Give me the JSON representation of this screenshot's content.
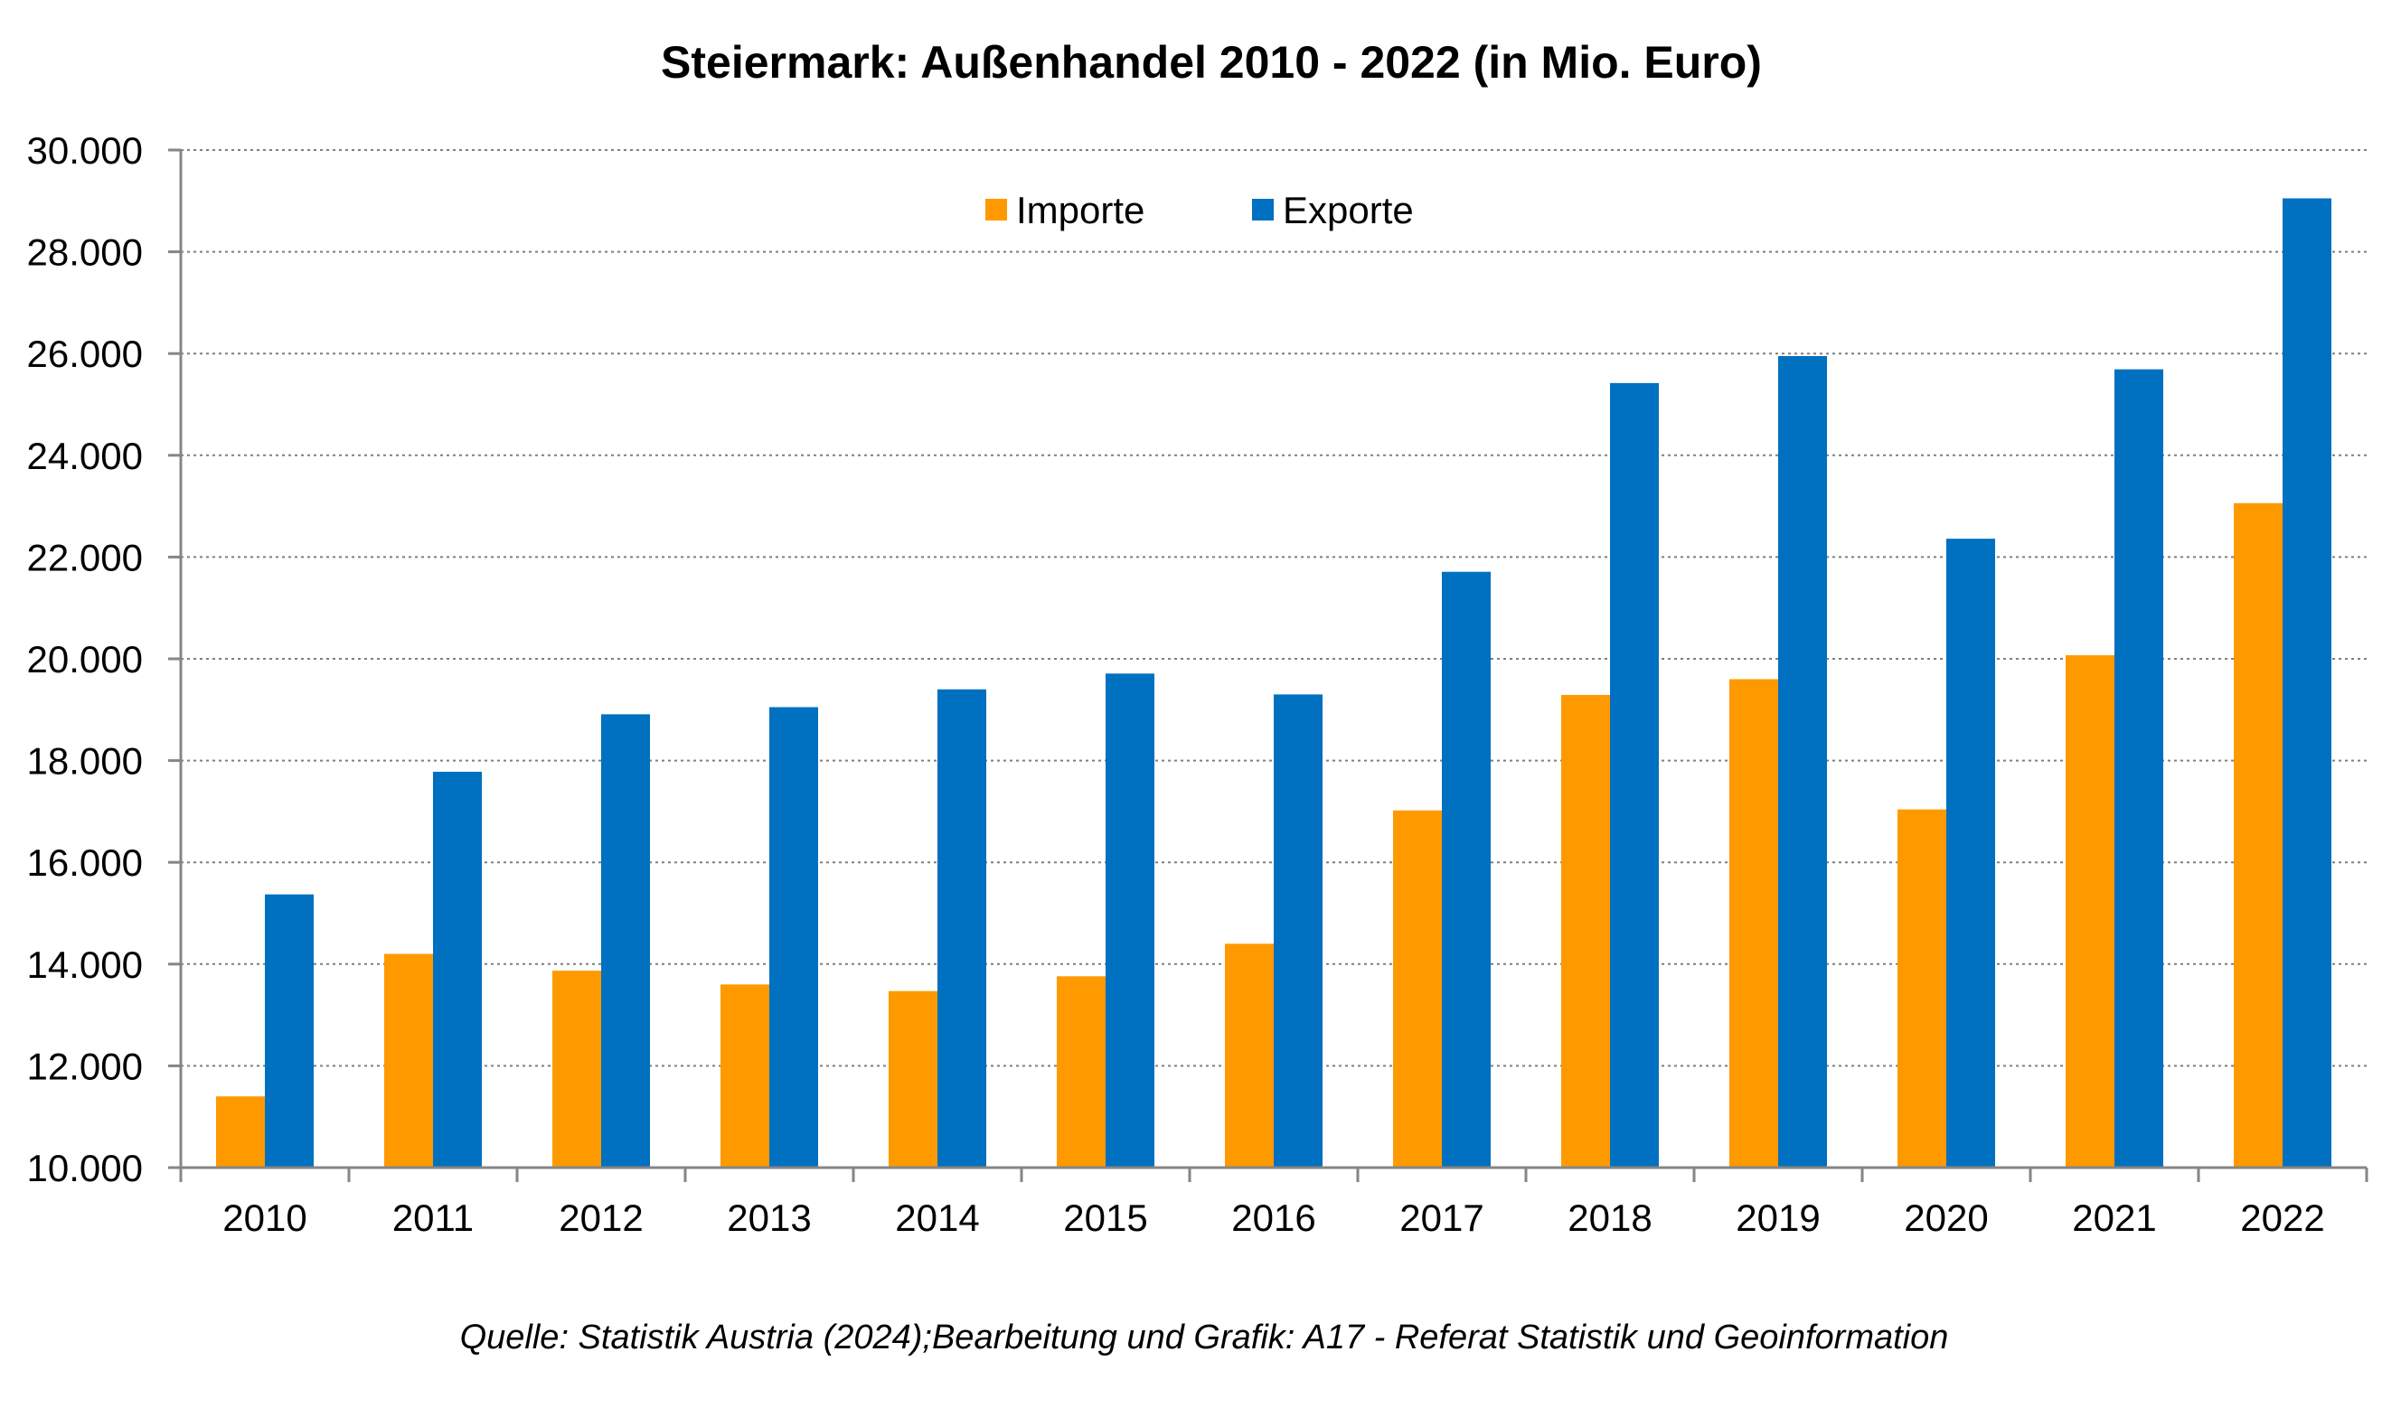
{
  "chart_data": {
    "type": "bar",
    "title": "Steiermark: Außenhandel 2010 - 2022 (in Mio. Euro)",
    "categories": [
      "2010",
      "2011",
      "2012",
      "2013",
      "2014",
      "2015",
      "2016",
      "2017",
      "2018",
      "2019",
      "2020",
      "2021",
      "2022"
    ],
    "series": [
      {
        "name": "Importe",
        "color": "#ff9900",
        "values": [
          11400,
          14200,
          13870,
          13600,
          13470,
          13760,
          14400,
          17020,
          19290,
          19600,
          17040,
          20070,
          23060
        ]
      },
      {
        "name": "Exporte",
        "color": "#0070c0",
        "values": [
          15370,
          17780,
          18910,
          19050,
          19400,
          19710,
          19300,
          21710,
          25420,
          25950,
          22360,
          25690,
          29050
        ]
      }
    ],
    "ylim": [
      10000,
      30000
    ],
    "y_ticks": [
      10000,
      12000,
      14000,
      16000,
      18000,
      20000,
      22000,
      24000,
      26000,
      28000,
      30000
    ],
    "y_tick_labels": [
      "10.000",
      "12.000",
      "14.000",
      "16.000",
      "18.000",
      "20.000",
      "22.000",
      "24.000",
      "26.000",
      "28.000",
      "30.000"
    ],
    "grid": "horizontal dotted",
    "legend_position": "top-center",
    "source": "Quelle: Statistik Austria (2024);Bearbeitung und Grafik: A17 - Referat Statistik und Geoinformation"
  }
}
